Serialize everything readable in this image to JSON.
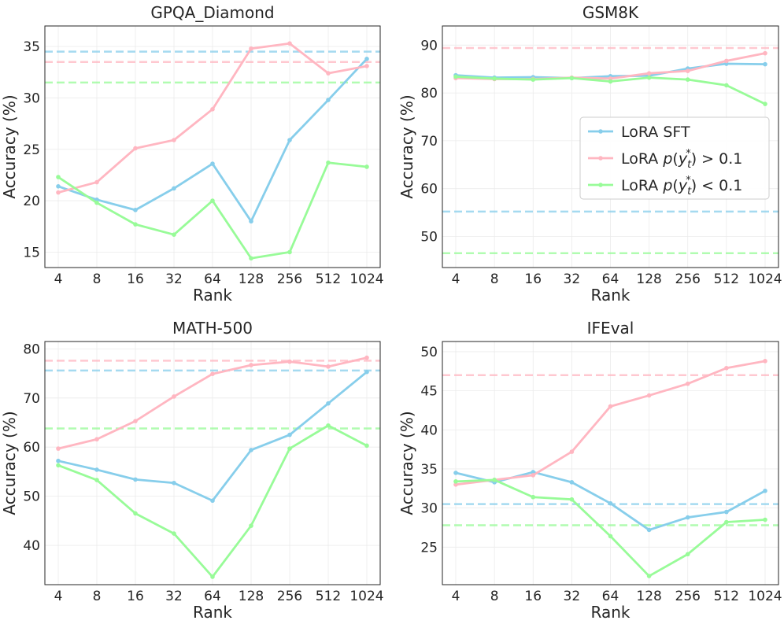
{
  "colors": {
    "lora_sft": "#87ceeb",
    "lora_gt": "#ffb6c1",
    "lora_lt": "#98fb98"
  },
  "legend": {
    "items": [
      {
        "key": "lora_sft",
        "label_parts": [
          "LoRA SFT"
        ]
      },
      {
        "key": "lora_gt",
        "label_parts": [
          "LoRA ",
          "p",
          "(",
          "y",
          "t",
          "*",
          ") > 0.1"
        ]
      },
      {
        "key": "lora_lt",
        "label_parts": [
          "LoRA ",
          "p",
          "(",
          "y",
          "t",
          "*",
          ") < 0.1"
        ]
      }
    ],
    "placement": "center-right"
  },
  "chart_data": [
    {
      "type": "line",
      "title": "GPQA_Diamond",
      "xlabel": "Rank",
      "ylabel": "Accuracy (%)",
      "categories": [
        "4",
        "8",
        "16",
        "32",
        "64",
        "128",
        "256",
        "512",
        "1024"
      ],
      "ylim": [
        13.5,
        37
      ],
      "yticks": [
        15,
        20,
        25,
        30,
        35
      ],
      "grid": true,
      "series": [
        {
          "name": "LoRA SFT",
          "color_key": "lora_sft",
          "values": [
            21.4,
            20.1,
            19.1,
            21.2,
            23.6,
            18.0,
            25.9,
            29.8,
            33.8
          ]
        },
        {
          "name": "LoRA p(y_t*) > 0.1",
          "color_key": "lora_gt",
          "values": [
            20.8,
            21.8,
            25.1,
            25.9,
            28.9,
            34.8,
            35.3,
            32.4,
            33.1
          ]
        },
        {
          "name": "LoRA p(y_t*) < 0.1",
          "color_key": "lora_lt",
          "values": [
            22.3,
            19.8,
            17.7,
            16.7,
            20.0,
            14.4,
            15.0,
            23.7,
            23.3
          ]
        }
      ],
      "baselines": [
        {
          "color_key": "lora_sft",
          "value": 34.5
        },
        {
          "color_key": "lora_gt",
          "value": 33.5
        },
        {
          "color_key": "lora_lt",
          "value": 31.5
        }
      ]
    },
    {
      "type": "line",
      "title": "GSM8K",
      "xlabel": "Rank",
      "ylabel": "Accuracy (%)",
      "categories": [
        "4",
        "8",
        "16",
        "32",
        "64",
        "128",
        "256",
        "512",
        "1024"
      ],
      "ylim": [
        43.5,
        94
      ],
      "yticks": [
        50,
        60,
        70,
        80,
        90
      ],
      "grid": true,
      "series": [
        {
          "name": "LoRA SFT",
          "color_key": "lora_sft",
          "values": [
            83.7,
            83.2,
            83.3,
            83.1,
            83.5,
            83.6,
            85.1,
            86.1,
            86.0
          ]
        },
        {
          "name": "LoRA p(y_t*) > 0.1",
          "color_key": "lora_gt",
          "values": [
            83.1,
            82.9,
            82.9,
            83.2,
            83.0,
            84.1,
            84.6,
            86.7,
            88.3
          ]
        },
        {
          "name": "LoRA p(y_t*) < 0.1",
          "color_key": "lora_lt",
          "values": [
            83.4,
            83.0,
            82.8,
            83.1,
            82.4,
            83.2,
            82.8,
            81.6,
            77.7
          ]
        }
      ],
      "baselines": [
        {
          "color_key": "lora_sft",
          "value": 55.2
        },
        {
          "color_key": "lora_gt",
          "value": 89.4
        },
        {
          "color_key": "lora_lt",
          "value": 46.5
        }
      ],
      "legend": true
    },
    {
      "type": "line",
      "title": "MATH-500",
      "xlabel": "Rank",
      "ylabel": "Accuracy (%)",
      "categories": [
        "4",
        "8",
        "16",
        "32",
        "64",
        "128",
        "256",
        "512",
        "1024"
      ],
      "ylim": [
        32,
        81.5
      ],
      "yticks": [
        40,
        50,
        60,
        70,
        80
      ],
      "grid": true,
      "series": [
        {
          "name": "LoRA SFT",
          "color_key": "lora_sft",
          "values": [
            57.2,
            55.4,
            53.4,
            52.7,
            49.1,
            59.4,
            62.5,
            68.9,
            75.3
          ]
        },
        {
          "name": "LoRA p(y_t*) > 0.1",
          "color_key": "lora_gt",
          "values": [
            59.7,
            61.6,
            65.3,
            70.3,
            74.9,
            76.7,
            77.4,
            76.4,
            78.2
          ]
        },
        {
          "name": "LoRA p(y_t*) < 0.1",
          "color_key": "lora_lt",
          "values": [
            56.3,
            53.3,
            46.5,
            42.4,
            33.6,
            44.0,
            59.7,
            64.4,
            60.3
          ]
        }
      ],
      "baselines": [
        {
          "color_key": "lora_sft",
          "value": 75.6
        },
        {
          "color_key": "lora_gt",
          "value": 77.6
        },
        {
          "color_key": "lora_lt",
          "value": 63.8
        }
      ]
    },
    {
      "type": "line",
      "title": "IFEval",
      "xlabel": "Rank",
      "ylabel": "Accuracy (%)",
      "categories": [
        "4",
        "8",
        "16",
        "32",
        "64",
        "128",
        "256",
        "512",
        "1024"
      ],
      "ylim": [
        20.2,
        51.3
      ],
      "yticks": [
        25,
        30,
        35,
        40,
        45,
        50
      ],
      "grid": true,
      "series": [
        {
          "name": "LoRA SFT",
          "color_key": "lora_sft",
          "values": [
            34.5,
            33.3,
            34.6,
            33.3,
            30.6,
            27.2,
            28.8,
            29.5,
            32.2
          ]
        },
        {
          "name": "LoRA p(y_t*) > 0.1",
          "color_key": "lora_gt",
          "values": [
            33.0,
            33.6,
            34.2,
            37.2,
            43.0,
            44.4,
            45.9,
            47.9,
            48.8
          ]
        },
        {
          "name": "LoRA p(y_t*) < 0.1",
          "color_key": "lora_lt",
          "values": [
            33.4,
            33.6,
            31.4,
            31.1,
            26.4,
            21.3,
            24.1,
            28.2,
            28.5
          ]
        }
      ],
      "baselines": [
        {
          "color_key": "lora_sft",
          "value": 30.5
        },
        {
          "color_key": "lora_gt",
          "value": 47.0
        },
        {
          "color_key": "lora_lt",
          "value": 27.8
        }
      ]
    }
  ]
}
